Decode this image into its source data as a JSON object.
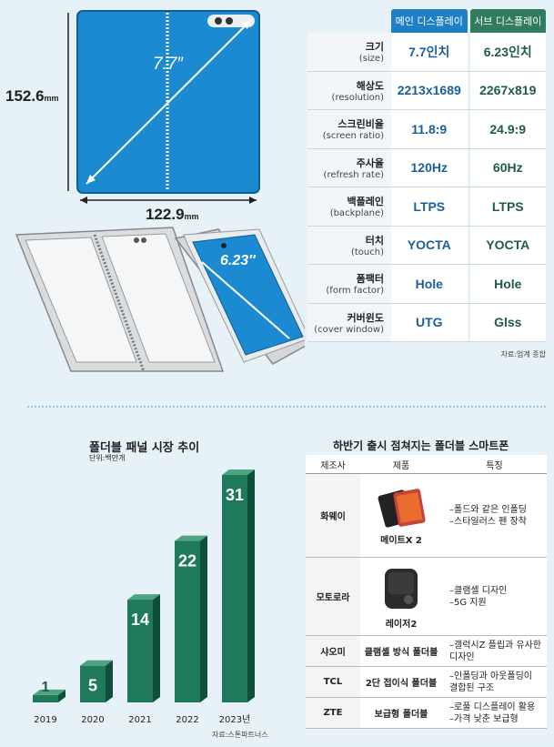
{
  "device": {
    "height_label": "152.6",
    "height_unit": "mm",
    "width_label": "122.9",
    "width_unit": "mm",
    "main_diag": "7.7″",
    "sub_diag": "6.23″"
  },
  "spec_table": {
    "col_main": "메인 디스플레이",
    "col_sub": "서브 디스플레이",
    "rows": [
      {
        "ko": "크기",
        "en": "(size)",
        "main": "7.7인치",
        "sub": "6.23인치"
      },
      {
        "ko": "해상도",
        "en": "(resolution)",
        "main": "2213x1689",
        "sub": "2267x819"
      },
      {
        "ko": "스크린비율",
        "en": "(screen ratio)",
        "main": "11.8:9",
        "sub": "24.9:9"
      },
      {
        "ko": "주사율",
        "en": "(refresh rate)",
        "main": "120Hz",
        "sub": "60Hz"
      },
      {
        "ko": "백플레인",
        "en": "(backplane)",
        "main": "LTPS",
        "sub": "LTPS"
      },
      {
        "ko": "터치",
        "en": "(touch)",
        "main": "YOCTA",
        "sub": "YOCTA"
      },
      {
        "ko": "폼팩터",
        "en": "(form factor)",
        "main": "Hole",
        "sub": "Hole"
      },
      {
        "ko": "커버윈도",
        "en": "(cover window)",
        "main": "UTG",
        "sub": "Glss"
      }
    ],
    "source": "자료:업계 종합"
  },
  "chart_data": {
    "type": "bar",
    "title": "폴더블 패널 시장 추이",
    "unit": "단위:백만개",
    "categories": [
      "2019",
      "2020",
      "2021",
      "2022",
      "2023년"
    ],
    "values": [
      1,
      5,
      14,
      22,
      31
    ],
    "ylim": [
      0,
      31
    ],
    "color": "#1f7a5c",
    "source": "자료:스톤파트너스"
  },
  "market": {
    "title": "하반기 출시 점쳐지는 폴더블 스마트폰",
    "headers": [
      "제조사",
      "제품",
      "특징"
    ],
    "rows": [
      {
        "maker": "화웨이",
        "product": "메이트X 2",
        "features": [
          "–폴드와 같은 인폴딩",
          "–스타일러스 펜 장착"
        ]
      },
      {
        "maker": "모토로라",
        "product": "레이저2",
        "features": [
          "–클램셸 디자인",
          "–5G 지원"
        ]
      },
      {
        "maker": "샤오미",
        "product": "클램셸 방식 폴더블",
        "features": [
          "–갤럭시Z 플립과 유사한",
          "  디자인"
        ]
      },
      {
        "maker": "TCL",
        "product": "2단 접이식 폴더블",
        "features": [
          "–인폴딩과 아웃폴딩이",
          "  결합된 구조"
        ]
      },
      {
        "maker": "ZTE",
        "product": "보급형 폴더블",
        "features": [
          "–로풀 디스플레이 활용",
          "–가격 낮춘 보급형"
        ]
      }
    ]
  }
}
